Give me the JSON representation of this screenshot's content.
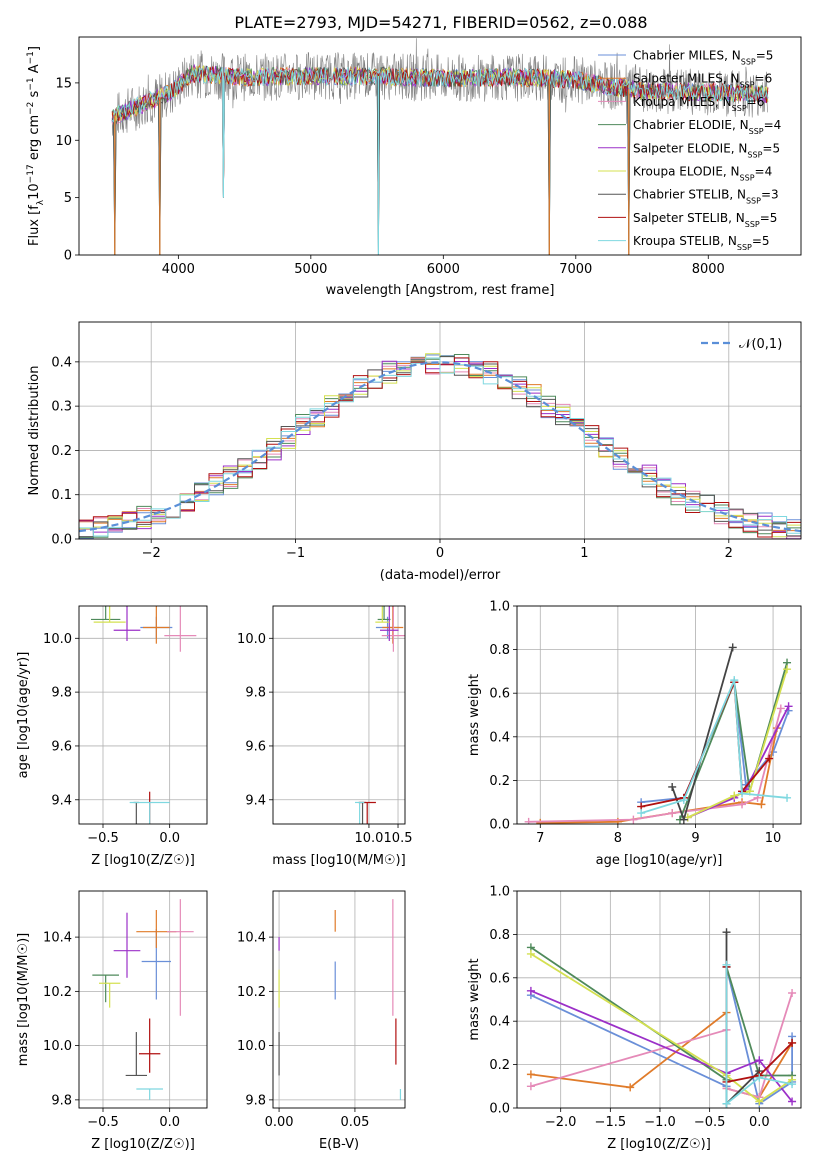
{
  "figure_title": "PLATE=2793, MJD=54271, FIBERID=0562, z=0.088",
  "legend_models": [
    {
      "main": "Chabrier MILES, N",
      "sub": "SSP",
      "tail": "=5",
      "color": "#6a8fd8"
    },
    {
      "main": "Salpeter MILES, N",
      "sub": "SSP",
      "tail": "=6",
      "color": "#e07b2a"
    },
    {
      "main": "Kroupa MILES, N",
      "sub": "SSP",
      "tail": "=6",
      "color": "#e58ab8"
    },
    {
      "main": "Chabrier ELODIE, N",
      "sub": "SSP",
      "tail": "=4",
      "color": "#4f8a5b"
    },
    {
      "main": "Salpeter ELODIE, N",
      "sub": "SSP",
      "tail": "=5",
      "color": "#9b30c8"
    },
    {
      "main": "Kroupa ELODIE, N",
      "sub": "SSP",
      "tail": "=4",
      "color": "#d4e050"
    },
    {
      "main": "Chabrier STELIB, N",
      "sub": "SSP",
      "tail": "=3",
      "color": "#555555"
    },
    {
      "main": "Salpeter STELIB, N",
      "sub": "SSP",
      "tail": "=5",
      "color": "#b01010"
    },
    {
      "main": "Kroupa STELIB, N",
      "sub": "SSP",
      "tail": "=5",
      "color": "#7fd8e0"
    }
  ],
  "chart_data": [
    {
      "id": "spectrum",
      "type": "line",
      "xlabel": "wavelength [Angstrom, rest frame]",
      "ylabel": "Flux [f_λ10^-17 erg cm^-2 s^-1 A^-1]",
      "xlim": [
        3250,
        8700
      ],
      "ylim": [
        0,
        19
      ],
      "xticks": [
        4000,
        5000,
        6000,
        7000,
        8000
      ],
      "yticks": [
        0,
        5,
        10,
        15
      ],
      "grid": false,
      "legend_position": "top-right",
      "observed_flux_color": "#808080",
      "continuum": [
        [
          3500,
          12.0
        ],
        [
          3700,
          13.0
        ],
        [
          3950,
          14.2
        ],
        [
          4100,
          15.8
        ],
        [
          4500,
          15.5
        ],
        [
          5000,
          15.6
        ],
        [
          5500,
          15.6
        ],
        [
          6000,
          15.4
        ],
        [
          6500,
          15.5
        ],
        [
          7000,
          15.3
        ],
        [
          7200,
          14.8
        ],
        [
          7500,
          14.3
        ],
        [
          8000,
          14.2
        ],
        [
          8450,
          14.0
        ]
      ],
      "absorption_lines": [
        [
          3520,
          0
        ],
        [
          3860,
          0
        ],
        [
          4340,
          5
        ],
        [
          5510,
          0
        ],
        [
          6800,
          0
        ],
        [
          7400,
          0
        ]
      ]
    },
    {
      "id": "residuals",
      "type": "line",
      "xlabel": "(data-model)/error",
      "ylabel": "Normed distribution",
      "xlim": [
        -2.5,
        2.5
      ],
      "ylim": [
        0,
        0.49
      ],
      "xticks": [
        -2,
        -1,
        0,
        1,
        2
      ],
      "yticks": [
        0,
        0.1,
        0.2,
        0.3,
        0.4
      ],
      "grid": true,
      "legend_position": "top-right",
      "series": [
        {
          "name": "𝒩(0,1)",
          "color": "#5a8fd8",
          "style": "dashed",
          "mean": 0,
          "sd": 1
        }
      ],
      "histogram_bin_width": 0.1
    },
    {
      "id": "age_vs_Z",
      "type": "scatter",
      "xlabel": "Z [log10(Z/Z☉)]",
      "ylabel": "age [log10(age/yr)]",
      "xlim": [
        -0.68,
        0.28
      ],
      "ylim": [
        9.31,
        10.12
      ],
      "xticks": [
        -0.5,
        0.0
      ],
      "yticks": [
        9.4,
        9.6,
        9.8,
        10.0
      ],
      "grid": true,
      "points": [
        {
          "x": -0.1,
          "y": 10.04,
          "xerr": 0.12,
          "yerr": [
            0.04,
            0.04
          ],
          "color": "#6a8fd8"
        },
        {
          "x": -0.1,
          "y": 10.04,
          "xerr": 0.1,
          "yerr": [
            0.06,
            0.08
          ],
          "color": "#e07b2a"
        },
        {
          "x": 0.08,
          "y": 10.01,
          "xerr": 0.12,
          "yerr": [
            0.06,
            0.14
          ],
          "color": "#e58ab8"
        },
        {
          "x": -0.48,
          "y": 10.07,
          "xerr": 0.11,
          "yerr": [
            0.0,
            0.16
          ],
          "color": "#4f8a5b"
        },
        {
          "x": -0.32,
          "y": 10.03,
          "xerr": 0.1,
          "yerr": [
            0.04,
            0.3
          ],
          "color": "#9b30c8"
        },
        {
          "x": -0.45,
          "y": 10.06,
          "xerr": 0.12,
          "yerr": [
            0.0,
            0.22
          ],
          "color": "#d4e050"
        },
        {
          "x": -0.25,
          "y": 9.39,
          "xerr": 0.02,
          "yerr": [
            0.42,
            0.0
          ],
          "color": "#555555"
        },
        {
          "x": -0.15,
          "y": 9.39,
          "xerr": 0.0,
          "yerr": [
            0.42,
            0.04
          ],
          "color": "#b01010"
        },
        {
          "x": -0.15,
          "y": 9.39,
          "xerr": 0.15,
          "yerr": [
            0.46,
            0.0
          ],
          "color": "#7fd8e0"
        }
      ]
    },
    {
      "id": "age_vs_mass",
      "type": "scatter",
      "xlabel": "mass [log10(M/M☉)]",
      "ylabel": "",
      "xlim": [
        8.35,
        10.62
      ],
      "ylim": [
        9.31,
        10.12
      ],
      "xticks": [
        10.0,
        10.5
      ],
      "yticks": [
        9.4,
        9.6,
        9.8,
        10.0
      ],
      "grid": true,
      "points": [
        {
          "x": 10.32,
          "y": 10.04,
          "xerr": 0.2,
          "yerr": [
            0.04,
            0.04
          ],
          "color": "#6a8fd8"
        },
        {
          "x": 10.41,
          "y": 10.04,
          "xerr": 0.18,
          "yerr": [
            0.06,
            0.08
          ],
          "color": "#e07b2a"
        },
        {
          "x": 10.42,
          "y": 10.01,
          "xerr": 0.2,
          "yerr": [
            0.06,
            0.14
          ],
          "color": "#e58ab8"
        },
        {
          "x": 10.26,
          "y": 10.07,
          "xerr": 0.11,
          "yerr": [
            0.0,
            0.16
          ],
          "color": "#4f8a5b"
        },
        {
          "x": 10.35,
          "y": 10.03,
          "xerr": 0.16,
          "yerr": [
            0.04,
            0.3
          ],
          "color": "#9b30c8"
        },
        {
          "x": 10.23,
          "y": 10.06,
          "xerr": 0.12,
          "yerr": [
            0.0,
            0.22
          ],
          "color": "#d4e050"
        },
        {
          "x": 9.89,
          "y": 9.39,
          "xerr": 0.06,
          "yerr": [
            0.42,
            0.0
          ],
          "color": "#555555"
        },
        {
          "x": 9.97,
          "y": 9.39,
          "xerr": 0.15,
          "yerr": [
            0.42,
            0.0
          ],
          "color": "#b01010"
        },
        {
          "x": 9.84,
          "y": 9.39,
          "xerr": 0.08,
          "yerr": [
            0.46,
            0.0
          ],
          "color": "#7fd8e0"
        }
      ]
    },
    {
      "id": "weight_vs_age",
      "type": "line",
      "xlabel": "age [log10(age/yr)]",
      "ylabel": "mass weight",
      "xlim": [
        6.7,
        10.36
      ],
      "ylim": [
        0,
        1.0
      ],
      "xticks": [
        7,
        8,
        9,
        10
      ],
      "yticks": [
        0.0,
        0.2,
        0.4,
        0.6,
        0.8,
        1.0
      ],
      "grid": true,
      "series": [
        {
          "color": "#6a8fd8",
          "x": [
            8.3,
            8.85,
            9.5,
            9.65,
            10.0,
            10.2
          ],
          "y": [
            0.1,
            0.12,
            0.65,
            0.18,
            0.33,
            0.52
          ]
        },
        {
          "color": "#e07b2a",
          "x": [
            7.0,
            8.0,
            8.7,
            9.6,
            9.85,
            10.05
          ],
          "y": [
            0.005,
            0.01,
            0.05,
            0.1,
            0.09,
            0.44
          ]
        },
        {
          "color": "#e58ab8",
          "x": [
            6.85,
            8.2,
            8.7,
            9.6,
            9.8,
            10.1
          ],
          "y": [
            0.01,
            0.02,
            0.05,
            0.09,
            0.12,
            0.53
          ]
        },
        {
          "color": "#4f8a5b",
          "x": [
            8.8,
            9.5,
            9.7,
            10.18
          ],
          "y": [
            0.02,
            0.65,
            0.15,
            0.74
          ]
        },
        {
          "color": "#9b30c8",
          "x": [
            8.9,
            9.5,
            9.65,
            10.2
          ],
          "y": [
            0.03,
            0.12,
            0.16,
            0.54
          ]
        },
        {
          "color": "#d4e050",
          "x": [
            8.9,
            9.5,
            9.7,
            10.18
          ],
          "y": [
            0.03,
            0.13,
            0.15,
            0.71
          ]
        },
        {
          "color": "#444444",
          "x": [
            8.7,
            8.85,
            9.48
          ],
          "y": [
            0.17,
            0.02,
            0.81
          ]
        },
        {
          "color": "#b01010",
          "x": [
            8.3,
            8.85,
            9.5,
            9.6,
            9.95
          ],
          "y": [
            0.08,
            0.12,
            0.65,
            0.15,
            0.3
          ]
        },
        {
          "color": "#7fd8e0",
          "x": [
            8.3,
            8.85,
            9.5,
            9.6,
            10.18
          ],
          "y": [
            0.05,
            0.11,
            0.66,
            0.14,
            0.12
          ]
        }
      ]
    },
    {
      "id": "mass_vs_Z",
      "type": "scatter",
      "xlabel": "Z [log10(Z/Z☉)]",
      "ylabel": "mass [log10(M/M☉)]",
      "xlim": [
        -0.68,
        0.28
      ],
      "ylim": [
        9.77,
        10.57
      ],
      "xticks": [
        -0.5,
        0.0
      ],
      "yticks": [
        9.8,
        10.0,
        10.2,
        10.4
      ],
      "grid": true,
      "points": [
        {
          "x": -0.1,
          "y": 10.31,
          "xerr": 0.11,
          "yerr": [
            0.14,
            0.12
          ],
          "color": "#6a8fd8"
        },
        {
          "x": -0.1,
          "y": 10.42,
          "xerr": 0.15,
          "yerr": [
            0.06,
            0.08
          ],
          "color": "#e07b2a"
        },
        {
          "x": 0.08,
          "y": 10.42,
          "xerr": 0.1,
          "yerr": [
            0.31,
            0.12
          ],
          "color": "#e58ab8"
        },
        {
          "x": -0.48,
          "y": 10.26,
          "xerr": 0.1,
          "yerr": [
            0.1,
            0.0
          ],
          "color": "#4f8a5b"
        },
        {
          "x": -0.32,
          "y": 10.35,
          "xerr": 0.1,
          "yerr": [
            0.1,
            0.14
          ],
          "color": "#9b30c8"
        },
        {
          "x": -0.45,
          "y": 10.23,
          "xerr": 0.08,
          "yerr": [
            0.09,
            0.0
          ],
          "color": "#d4e050"
        },
        {
          "x": -0.25,
          "y": 9.89,
          "xerr": 0.08,
          "yerr": [
            0.0,
            0.16
          ],
          "color": "#555555"
        },
        {
          "x": -0.15,
          "y": 9.97,
          "xerr": 0.08,
          "yerr": [
            0.07,
            0.13
          ],
          "color": "#b01010"
        },
        {
          "x": -0.15,
          "y": 9.84,
          "xerr": 0.1,
          "yerr": [
            0.04,
            0.0
          ],
          "color": "#7fd8e0"
        }
      ]
    },
    {
      "id": "mass_vs_EBV",
      "type": "scatter",
      "xlabel": "E(B-V)",
      "ylabel": "",
      "xlim": [
        -0.004,
        0.083
      ],
      "ylim": [
        9.77,
        10.57
      ],
      "xticks": [
        0.0,
        0.05
      ],
      "yticks": [
        9.8,
        10.0,
        10.2,
        10.4
      ],
      "grid": true,
      "points": [
        {
          "x": 0.037,
          "y": 10.31,
          "xerr": 0,
          "yerr": [
            0.14,
            0.0
          ],
          "color": "#6a8fd8"
        },
        {
          "x": 0.037,
          "y": 10.42,
          "xerr": 0,
          "yerr": [
            0.0,
            0.08
          ],
          "color": "#e07b2a"
        },
        {
          "x": 0.075,
          "y": 10.42,
          "xerr": 0,
          "yerr": [
            0.31,
            0.12
          ],
          "color": "#e58ab8"
        },
        {
          "x": 0.0,
          "y": 10.26,
          "xerr": 0,
          "yerr": [
            0.0,
            0.0
          ],
          "color": "#4f8a5b"
        },
        {
          "x": 0.0,
          "y": 10.35,
          "xerr": 0,
          "yerr": [
            0.0,
            0.05
          ],
          "color": "#9b30c8"
        },
        {
          "x": 0.0,
          "y": 10.23,
          "xerr": 0,
          "yerr": [
            0.09,
            0.05
          ],
          "color": "#d4e050"
        },
        {
          "x": 0.0,
          "y": 9.89,
          "xerr": 0,
          "yerr": [
            0.0,
            0.16
          ],
          "color": "#555555"
        },
        {
          "x": 0.077,
          "y": 9.97,
          "xerr": 0,
          "yerr": [
            0.04,
            0.13
          ],
          "color": "#b01010"
        },
        {
          "x": 0.08,
          "y": 9.84,
          "xerr": 0,
          "yerr": [
            0.04,
            0.0
          ],
          "color": "#7fd8e0"
        }
      ]
    },
    {
      "id": "weight_vs_Z",
      "type": "line",
      "xlabel": "Z [log10(Z/Z☉)]",
      "ylabel": "mass weight",
      "xlim": [
        -2.44,
        0.42
      ],
      "ylim": [
        0,
        1.0
      ],
      "xticks": [
        -2.0,
        -1.5,
        -1.0,
        -0.5,
        0.0
      ],
      "yticks": [
        0.0,
        0.2,
        0.4,
        0.6,
        0.8,
        1.0
      ],
      "grid": true,
      "series": [
        {
          "color": "#6a8fd8",
          "x": [
            -2.3,
            -0.33,
            -0.33,
            0.0,
            0.33,
            0.33
          ],
          "y": [
            0.52,
            0.1,
            0.65,
            0.02,
            0.12,
            0.33
          ]
        },
        {
          "color": "#e07b2a",
          "x": [
            -2.3,
            -1.3,
            -0.33,
            -0.33,
            0.0,
            0.33
          ],
          "y": [
            0.155,
            0.095,
            0.44,
            0.09,
            0.05,
            0.3
          ]
        },
        {
          "color": "#e58ab8",
          "x": [
            -2.3,
            -0.33,
            -0.33,
            0.0,
            0.33
          ],
          "y": [
            0.1,
            0.36,
            0.09,
            0.05,
            0.53
          ]
        },
        {
          "color": "#4f8a5b",
          "x": [
            -2.3,
            -0.33,
            -0.33,
            0.0,
            0.33
          ],
          "y": [
            0.74,
            0.13,
            0.65,
            0.15,
            0.15
          ]
        },
        {
          "color": "#9b30c8",
          "x": [
            -2.3,
            -0.33,
            0.0,
            0.33
          ],
          "y": [
            0.54,
            0.16,
            0.22,
            0.03
          ]
        },
        {
          "color": "#d4e050",
          "x": [
            -2.3,
            -0.33,
            0.0,
            0.33
          ],
          "y": [
            0.71,
            0.15,
            0.03,
            0.13
          ]
        },
        {
          "color": "#444444",
          "x": [
            -0.33,
            -0.33,
            0.0
          ],
          "y": [
            0.81,
            0.02,
            0.17
          ]
        },
        {
          "color": "#b01010",
          "x": [
            -0.33,
            -0.33,
            0.0,
            0.33
          ],
          "y": [
            0.65,
            0.12,
            0.15,
            0.3
          ]
        },
        {
          "color": "#7fd8e0",
          "x": [
            -0.33,
            -0.33,
            0.0,
            0.33
          ],
          "y": [
            0.66,
            0.02,
            0.14,
            0.11
          ]
        }
      ]
    }
  ]
}
